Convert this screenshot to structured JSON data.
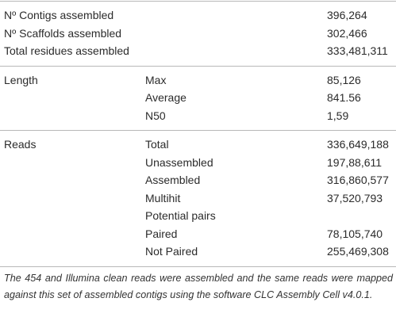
{
  "table": {
    "sections": [
      {
        "rows": [
          {
            "label": "Nº Contigs assembled",
            "value": "396,264"
          },
          {
            "label": "Nº Scaffolds assembled",
            "value": "302,466"
          },
          {
            "label": "Total residues assembled",
            "value": "333,481,311"
          }
        ]
      },
      {
        "rows": [
          {
            "label": "Length",
            "sub": "Max",
            "value": "85,126"
          },
          {
            "sub": "Average",
            "value": "841.56"
          },
          {
            "sub": "N50",
            "value": "1,59"
          }
        ]
      },
      {
        "rows": [
          {
            "label": "Reads",
            "sub": "Total",
            "value": "336,649,188"
          },
          {
            "sub": "Unassembled",
            "value": "197,88,611"
          },
          {
            "sub": "Assembled",
            "value": "316,860,577"
          },
          {
            "sub": "Multihit",
            "value": "37,520,793"
          },
          {
            "sub": "Potential pairs"
          },
          {
            "sub": "Paired",
            "value": "78,105,740"
          },
          {
            "sub": "Not Paired",
            "value": "255,469,308"
          }
        ]
      }
    ]
  },
  "caption": "The 454 and Illumina clean reads were assembled and the same reads were mapped against this set of assembled contigs using the software CLC Assembly Cell v4.0.1."
}
